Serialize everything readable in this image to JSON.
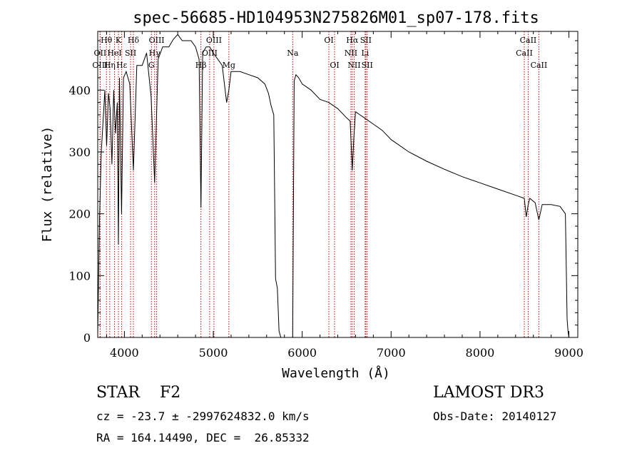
{
  "chart_data": {
    "type": "line",
    "title": "spec-56685-HD104953N275826M01_sp07-178.fits",
    "xlabel": "Wavelength (Å)",
    "ylabel": "Flux (relative)",
    "xlim": [
      3700,
      9100
    ],
    "ylim": [
      0,
      495
    ],
    "x_ticks": [
      4000,
      5000,
      6000,
      7000,
      8000,
      9000
    ],
    "y_ticks": [
      0,
      100,
      200,
      300,
      400
    ],
    "grid": false,
    "series": [
      {
        "x": [
          3700,
          3720,
          3740,
          3760,
          3780,
          3800,
          3820,
          3840,
          3860,
          3880,
          3900,
          3920,
          3933,
          3945,
          3968,
          3990,
          4020,
          4060,
          4101,
          4140,
          4200,
          4250,
          4300,
          4340,
          4380,
          4430,
          4500,
          4550,
          4600,
          4650,
          4700,
          4750,
          4800,
          4840,
          4861,
          4880,
          4920,
          4960,
          5000,
          5050,
          5100,
          5150,
          5175,
          5200,
          5300,
          5400,
          5500,
          5580,
          5620,
          5650,
          5680,
          5700,
          5720,
          5740,
          5760,
          5780,
          5800,
          5840,
          5880,
          5893,
          5910,
          5930,
          5960,
          6000,
          6100,
          6200,
          6300,
          6400,
          6500,
          6540,
          6563,
          6580,
          6600,
          6650,
          6700,
          6800,
          6900,
          7000,
          7200,
          7400,
          7600,
          7800,
          8000,
          8200,
          8400,
          8498,
          8520,
          8542,
          8560,
          8620,
          8662,
          8700,
          8800,
          8900,
          8960,
          8980,
          8990,
          9000
        ],
        "y": [
          5,
          190,
          300,
          350,
          400,
          310,
          395,
          370,
          280,
          400,
          330,
          380,
          150,
          420,
          200,
          420,
          430,
          410,
          270,
          440,
          440,
          460,
          390,
          250,
          450,
          470,
          470,
          482,
          490,
          480,
          480,
          480,
          470,
          450,
          210,
          460,
          470,
          470,
          460,
          450,
          440,
          380,
          400,
          430,
          430,
          425,
          420,
          410,
          395,
          375,
          360,
          95,
          80,
          10,
          0,
          0,
          0,
          0,
          0,
          0,
          415,
          425,
          420,
          410,
          400,
          385,
          380,
          370,
          355,
          350,
          270,
          320,
          365,
          360,
          355,
          345,
          335,
          320,
          300,
          285,
          272,
          260,
          250,
          240,
          230,
          225,
          195,
          215,
          225,
          218,
          190,
          215,
          215,
          212,
          200,
          30,
          10,
          0
        ]
      }
    ],
    "annotations": [
      {
        "label": "Hθ",
        "x": 3798,
        "row": 0
      },
      {
        "label": "OII",
        "x": 3727,
        "row": 1
      },
      {
        "label": "OIII",
        "x": 3727,
        "row": 2
      },
      {
        "label": "K",
        "x": 3933,
        "row": 0
      },
      {
        "label": "HeI",
        "x": 3889,
        "row": 1
      },
      {
        "label": "Hη",
        "x": 3835,
        "row": 2
      },
      {
        "label": "Hε",
        "x": 3970,
        "row": 2
      },
      {
        "label": "Hδ",
        "x": 4101,
        "row": 0
      },
      {
        "label": "SII",
        "x": 4070,
        "row": 1
      },
      {
        "label": "OIII",
        "x": 4363,
        "row": 0
      },
      {
        "label": "Hγ",
        "x": 4340,
        "row": 1
      },
      {
        "label": "G",
        "x": 4304,
        "row": 2
      },
      {
        "label": "OIII",
        "x": 5007,
        "row": 0
      },
      {
        "label": "OIII",
        "x": 4959,
        "row": 1
      },
      {
        "label": "Hβ",
        "x": 4861,
        "row": 2
      },
      {
        "label": "Mg",
        "x": 5175,
        "row": 2
      },
      {
        "label": "Na",
        "x": 5893,
        "row": 1
      },
      {
        "label": "OI",
        "x": 6300,
        "row": 0
      },
      {
        "label": "OI",
        "x": 6364,
        "row": 2
      },
      {
        "label": "Hα",
        "x": 6563,
        "row": 0
      },
      {
        "label": "SII",
        "x": 6716,
        "row": 0
      },
      {
        "label": "NII",
        "x": 6548,
        "row": 1
      },
      {
        "label": "Li",
        "x": 6708,
        "row": 1
      },
      {
        "label": "NII",
        "x": 6584,
        "row": 2
      },
      {
        "label": "SII",
        "x": 6731,
        "row": 2
      },
      {
        "label": "CaII",
        "x": 8542,
        "row": 0
      },
      {
        "label": "CaII",
        "x": 8498,
        "row": 1
      },
      {
        "label": "CaII",
        "x": 8662,
        "row": 2
      }
    ]
  },
  "info": {
    "object": "STAR    F2",
    "survey": "LAMOST DR3",
    "cz": "cz = -23.7 ± -2997624832.0 km/s",
    "obs_date": "Obs-Date: 20140127",
    "radec": "RA = 164.14490, DEC =  26.85332"
  },
  "colors": {
    "line": "#000000",
    "marker_lines": "#cc0000",
    "background": "#ffffff"
  }
}
